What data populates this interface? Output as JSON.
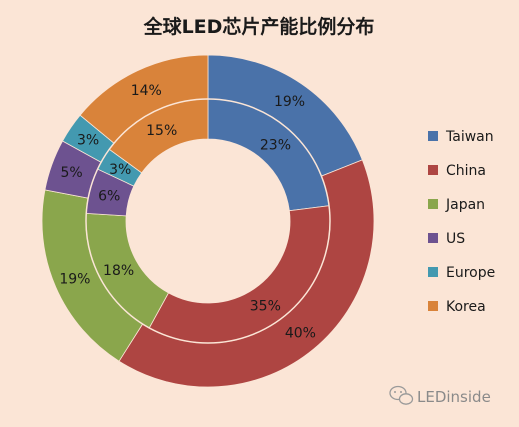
{
  "chart_data": {
    "type": "doughnut",
    "title": "全球LED芯片产能比例分布",
    "categories": [
      "Taiwan",
      "China",
      "Japan",
      "US",
      "Europe",
      "Korea"
    ],
    "colors": [
      "#4a72a9",
      "#ae4542",
      "#8aa64c",
      "#6d5290",
      "#4399b0",
      "#d9833a"
    ],
    "series": [
      {
        "ring": "outer",
        "values": [
          19,
          40,
          19,
          5,
          3,
          14
        ],
        "labels": [
          "19%",
          "40%",
          "19%",
          "5%",
          "3%",
          "14%"
        ]
      },
      {
        "ring": "inner",
        "values": [
          23,
          35,
          18,
          6,
          3,
          15
        ],
        "labels": [
          "23%",
          "35%",
          "18%",
          "6%",
          "3%",
          "15%"
        ]
      }
    ],
    "legend_position": "right"
  },
  "watermark": {
    "text": "LEDinside",
    "icon": "wechat-icon"
  }
}
